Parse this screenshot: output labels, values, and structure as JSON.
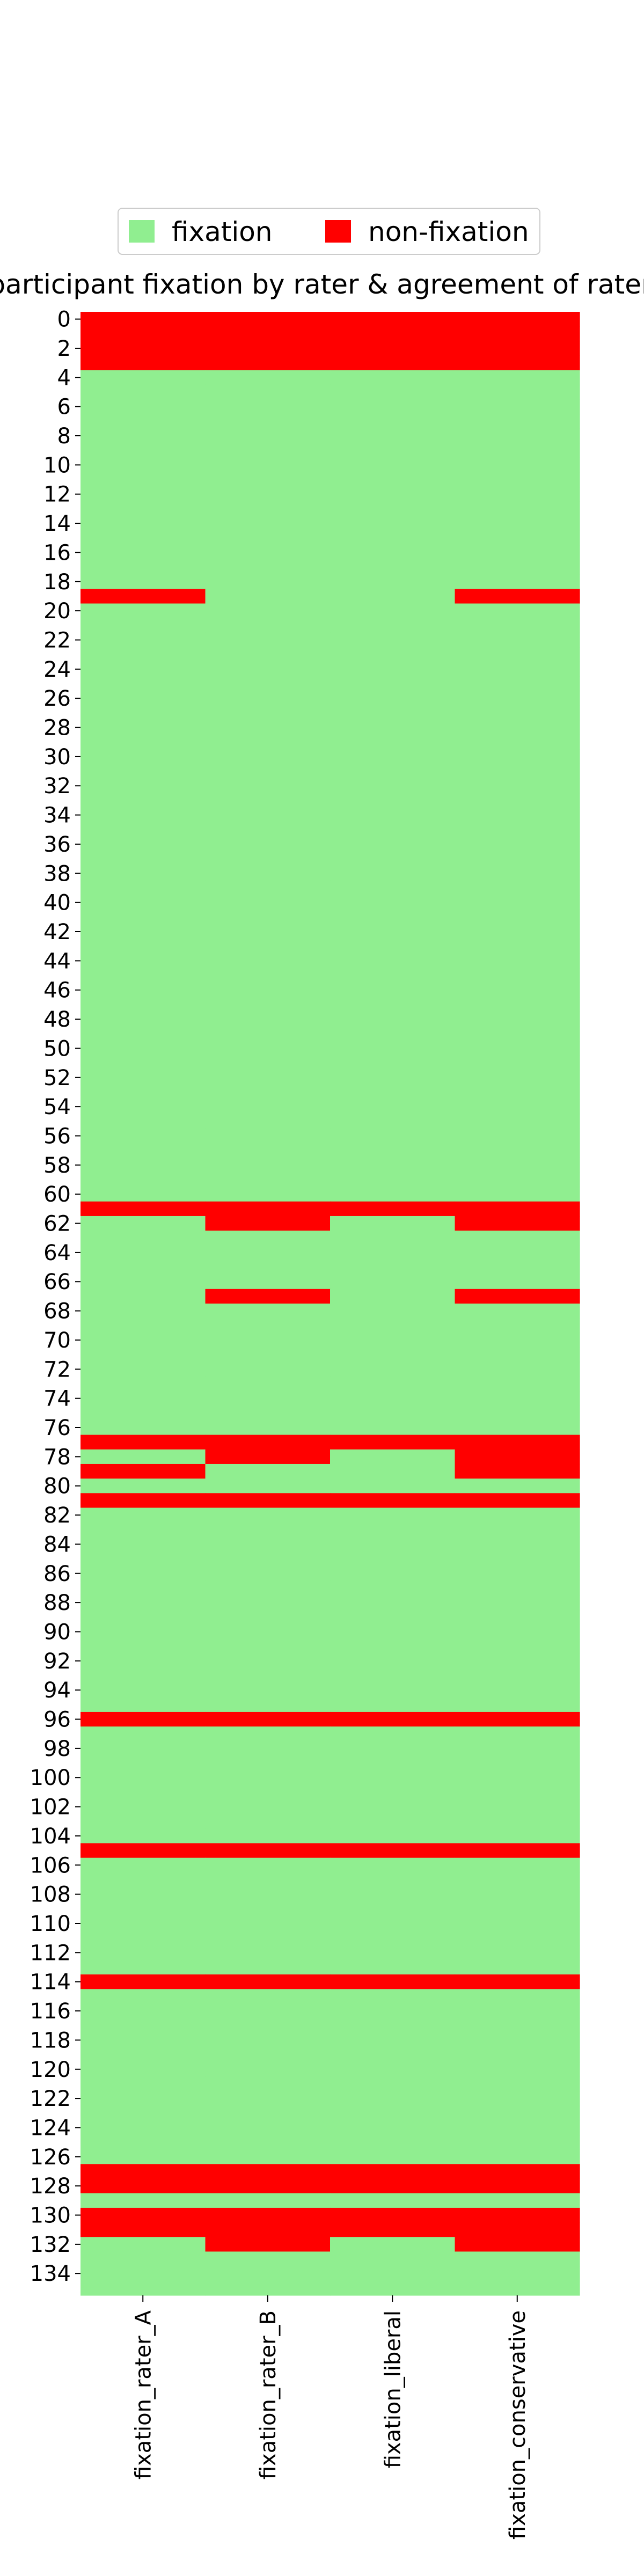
{
  "chart_data": {
    "type": "heatmap",
    "title": "participant fixation by rater & agreement of raters",
    "columns": [
      "fixation_rater_A",
      "fixation_rater_B",
      "fixation_liberal",
      "fixation_conservative"
    ],
    "rows": [
      0,
      1,
      2,
      3,
      4,
      5,
      6,
      7,
      8,
      9,
      10,
      11,
      12,
      13,
      14,
      15,
      16,
      17,
      18,
      19,
      20,
      21,
      22,
      23,
      24,
      25,
      26,
      27,
      28,
      29,
      30,
      31,
      32,
      33,
      34,
      35,
      36,
      37,
      38,
      39,
      40,
      41,
      42,
      43,
      44,
      45,
      46,
      47,
      48,
      49,
      50,
      51,
      52,
      53,
      54,
      55,
      56,
      57,
      58,
      59,
      60,
      61,
      62,
      63,
      64,
      65,
      66,
      67,
      68,
      69,
      70,
      71,
      72,
      73,
      74,
      75,
      76,
      77,
      78,
      79,
      80,
      81,
      82,
      83,
      84,
      85,
      86,
      87,
      88,
      89,
      90,
      91,
      92,
      93,
      94,
      95,
      96,
      97,
      98,
      99,
      100,
      101,
      102,
      103,
      104,
      105,
      106,
      107,
      108,
      109,
      110,
      111,
      112,
      113,
      114,
      115,
      116,
      117,
      118,
      119,
      120,
      121,
      122,
      123,
      124,
      125,
      126,
      127,
      128,
      129,
      130,
      131,
      132,
      133,
      134,
      135
    ],
    "y_tick_labels": [
      "0",
      "2",
      "4",
      "6",
      "8",
      "10",
      "12",
      "14",
      "16",
      "18",
      "20",
      "22",
      "24",
      "26",
      "28",
      "30",
      "32",
      "34",
      "36",
      "38",
      "40",
      "42",
      "44",
      "46",
      "48",
      "50",
      "52",
      "54",
      "56",
      "58",
      "60",
      "62",
      "64",
      "66",
      "68",
      "70",
      "72",
      "74",
      "76",
      "78",
      "80",
      "82",
      "84",
      "86",
      "88",
      "90",
      "92",
      "94",
      "96",
      "98",
      "100",
      "102",
      "104",
      "106",
      "108",
      "110",
      "112",
      "114",
      "116",
      "118",
      "120",
      "122",
      "124",
      "126",
      "128",
      "130",
      "132",
      "134"
    ],
    "categories_legend": [
      {
        "name": "fixation",
        "color": "#90ee90"
      },
      {
        "name": "non-fixation",
        "color": "#ff0000"
      }
    ],
    "legend_position": "top-center",
    "non_fixation_cells": [
      [
        0,
        0
      ],
      [
        0,
        1
      ],
      [
        0,
        2
      ],
      [
        0,
        3
      ],
      [
        1,
        0
      ],
      [
        1,
        1
      ],
      [
        1,
        2
      ],
      [
        1,
        3
      ],
      [
        2,
        0
      ],
      [
        2,
        1
      ],
      [
        2,
        2
      ],
      [
        2,
        3
      ],
      [
        3,
        0
      ],
      [
        3,
        1
      ],
      [
        3,
        2
      ],
      [
        3,
        3
      ],
      [
        19,
        0
      ],
      [
        19,
        3
      ],
      [
        61,
        0
      ],
      [
        61,
        1
      ],
      [
        61,
        2
      ],
      [
        61,
        3
      ],
      [
        62,
        1
      ],
      [
        62,
        3
      ],
      [
        67,
        1
      ],
      [
        67,
        3
      ],
      [
        77,
        0
      ],
      [
        77,
        1
      ],
      [
        77,
        2
      ],
      [
        77,
        3
      ],
      [
        78,
        1
      ],
      [
        78,
        3
      ],
      [
        79,
        0
      ],
      [
        79,
        3
      ],
      [
        81,
        0
      ],
      [
        81,
        1
      ],
      [
        81,
        2
      ],
      [
        81,
        3
      ],
      [
        96,
        0
      ],
      [
        96,
        1
      ],
      [
        96,
        2
      ],
      [
        96,
        3
      ],
      [
        105,
        0
      ],
      [
        105,
        1
      ],
      [
        105,
        2
      ],
      [
        105,
        3
      ],
      [
        114,
        0
      ],
      [
        114,
        1
      ],
      [
        114,
        2
      ],
      [
        114,
        3
      ],
      [
        127,
        0
      ],
      [
        127,
        1
      ],
      [
        127,
        2
      ],
      [
        127,
        3
      ],
      [
        128,
        0
      ],
      [
        128,
        1
      ],
      [
        128,
        2
      ],
      [
        128,
        3
      ],
      [
        130,
        0
      ],
      [
        130,
        1
      ],
      [
        130,
        2
      ],
      [
        130,
        3
      ],
      [
        131,
        0
      ],
      [
        131,
        1
      ],
      [
        131,
        2
      ],
      [
        131,
        3
      ],
      [
        132,
        1
      ],
      [
        132,
        3
      ]
    ]
  }
}
